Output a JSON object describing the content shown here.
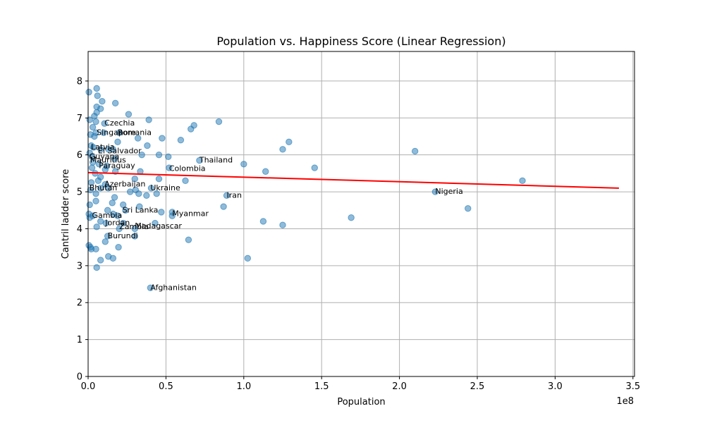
{
  "chart_data": {
    "type": "scatter",
    "title": "Population vs. Happiness Score (Linear Regression)",
    "xlabel": "Population",
    "ylabel": "Cantril ladder score",
    "x_offset_label": "1e8",
    "xlim": [
      0,
      351000000
    ],
    "ylim": [
      0,
      8.8
    ],
    "x_ticks": [
      0,
      50000000,
      100000000,
      150000000,
      200000000,
      250000000,
      300000000,
      350000000
    ],
    "x_tick_labels": [
      "0.0",
      "0.5",
      "1.0",
      "1.5",
      "2.0",
      "2.5",
      "3.0",
      "3.5"
    ],
    "y_ticks": [
      0,
      1,
      2,
      3,
      4,
      5,
      6,
      7,
      8
    ],
    "y_tick_labels": [
      "0",
      "1",
      "2",
      "3",
      "4",
      "5",
      "6",
      "7",
      "8"
    ],
    "grid": true,
    "colors": {
      "points": "#1f77b4",
      "regression": "#ff0000",
      "grid": "#b0b0b0"
    },
    "regression_line": {
      "x": [
        0,
        341000000
      ],
      "y": [
        5.52,
        5.1
      ]
    },
    "points": [
      [
        500000,
        7.7
      ],
      [
        5500000,
        7.8
      ],
      [
        6000000,
        7.6
      ],
      [
        9000000,
        7.45
      ],
      [
        17500000,
        7.4
      ],
      [
        5500000,
        7.3
      ],
      [
        8000000,
        7.25
      ],
      [
        5500000,
        7.15
      ],
      [
        26000000,
        7.1
      ],
      [
        39000000,
        6.95
      ],
      [
        4000000,
        7.05
      ],
      [
        1000000,
        6.95
      ],
      [
        5000000,
        6.9
      ],
      [
        10500000,
        6.85
      ],
      [
        84000000,
        6.9
      ],
      [
        68000000,
        6.8
      ],
      [
        3000000,
        6.75
      ],
      [
        66000000,
        6.7
      ],
      [
        5000000,
        6.6
      ],
      [
        10000000,
        6.6
      ],
      [
        20000000,
        6.6
      ],
      [
        1500000,
        6.55
      ],
      [
        4000000,
        6.5
      ],
      [
        32000000,
        6.45
      ],
      [
        47500000,
        6.45
      ],
      [
        59500000,
        6.4
      ],
      [
        129000000,
        6.35
      ],
      [
        19000000,
        6.35
      ],
      [
        38000000,
        6.25
      ],
      [
        2000000,
        6.25
      ],
      [
        3500000,
        6.2
      ],
      [
        8000000,
        6.15
      ],
      [
        13000000,
        6.15
      ],
      [
        16000000,
        6.15
      ],
      [
        125000000,
        6.15
      ],
      [
        210000000,
        6.1
      ],
      [
        1000000,
        6.05
      ],
      [
        34500000,
        6.0
      ],
      [
        45500000,
        6.0
      ],
      [
        51500000,
        5.95
      ],
      [
        2500000,
        5.95
      ],
      [
        17000000,
        5.9
      ],
      [
        3000000,
        5.8
      ],
      [
        71500000,
        5.85
      ],
      [
        100000000,
        5.75
      ],
      [
        7000000,
        5.75
      ],
      [
        12000000,
        5.7
      ],
      [
        2500000,
        5.65
      ],
      [
        145500000,
        5.65
      ],
      [
        52000000,
        5.65
      ],
      [
        11000000,
        5.6
      ],
      [
        17500000,
        5.55
      ],
      [
        33500000,
        5.55
      ],
      [
        114000000,
        5.55
      ],
      [
        4500000,
        5.5
      ],
      [
        8000000,
        5.4
      ],
      [
        30000000,
        5.35
      ],
      [
        45500000,
        5.35
      ],
      [
        6500000,
        5.3
      ],
      [
        62500000,
        5.3
      ],
      [
        279000000,
        5.3
      ],
      [
        2000000,
        5.25
      ],
      [
        11000000,
        5.2
      ],
      [
        13000000,
        5.1
      ],
      [
        27000000,
        5.0
      ],
      [
        30500000,
        5.05
      ],
      [
        8000000,
        5.1
      ],
      [
        40500000,
        5.1
      ],
      [
        223000000,
        5.0
      ],
      [
        32500000,
        4.95
      ],
      [
        1500000,
        5.05
      ],
      [
        37500000,
        4.9
      ],
      [
        44000000,
        4.95
      ],
      [
        89000000,
        4.9
      ],
      [
        5000000,
        4.95
      ],
      [
        17000000,
        4.85
      ],
      [
        5000000,
        4.75
      ],
      [
        15500000,
        4.7
      ],
      [
        1000000,
        4.65
      ],
      [
        22500000,
        4.65
      ],
      [
        87000000,
        4.6
      ],
      [
        244000000,
        4.55
      ],
      [
        12500000,
        4.5
      ],
      [
        24000000,
        4.5
      ],
      [
        33000000,
        4.6
      ],
      [
        47000000,
        4.45
      ],
      [
        54000000,
        4.45
      ],
      [
        500000,
        4.4
      ],
      [
        3000000,
        4.35
      ],
      [
        16000000,
        4.4
      ],
      [
        19000000,
        4.35
      ],
      [
        54000000,
        4.35
      ],
      [
        169000000,
        4.3
      ],
      [
        1000000,
        4.3
      ],
      [
        8000000,
        4.2
      ],
      [
        11500000,
        4.15
      ],
      [
        22500000,
        4.15
      ],
      [
        112500000,
        4.2
      ],
      [
        43000000,
        4.15
      ],
      [
        125000000,
        4.1
      ],
      [
        5500000,
        4.05
      ],
      [
        20000000,
        4.0
      ],
      [
        30000000,
        4.0
      ],
      [
        12500000,
        3.8
      ],
      [
        30000000,
        3.8
      ],
      [
        11000000,
        3.65
      ],
      [
        64500000,
        3.7
      ],
      [
        500000,
        3.55
      ],
      [
        2000000,
        3.45
      ],
      [
        5000000,
        3.45
      ],
      [
        19500000,
        3.5
      ],
      [
        1500000,
        3.5
      ],
      [
        13000000,
        3.25
      ],
      [
        16000000,
        3.2
      ],
      [
        102500000,
        3.2
      ],
      [
        8000000,
        3.15
      ],
      [
        5500000,
        2.95
      ],
      [
        40000000,
        2.4
      ]
    ],
    "annotations": [
      {
        "text": "Czechia",
        "x": 10500000,
        "y": 6.85
      },
      {
        "text": "Singapore",
        "x": 5500000,
        "y": 6.6
      },
      {
        "text": "Romania",
        "x": 19000000,
        "y": 6.6
      },
      {
        "text": "Latvia",
        "x": 1800000,
        "y": 6.2
      },
      {
        "text": "El Salvador",
        "x": 6300000,
        "y": 6.1
      },
      {
        "text": "Guyana",
        "x": 800000,
        "y": 5.95
      },
      {
        "text": "Mauritius",
        "x": 1300000,
        "y": 5.85
      },
      {
        "text": "Paraguay",
        "x": 6900000,
        "y": 5.7
      },
      {
        "text": "Thailand",
        "x": 71500000,
        "y": 5.85
      },
      {
        "text": "Colombia",
        "x": 52000000,
        "y": 5.62
      },
      {
        "text": "Azerbaijan",
        "x": 10500000,
        "y": 5.2
      },
      {
        "text": "Bhutan",
        "x": 800000,
        "y": 5.1
      },
      {
        "text": "Ukraine",
        "x": 40000000,
        "y": 5.1
      },
      {
        "text": "Iran",
        "x": 89000000,
        "y": 4.9
      },
      {
        "text": "Nigeria",
        "x": 223000000,
        "y": 5.0
      },
      {
        "text": "Sri Lanka",
        "x": 22000000,
        "y": 4.5
      },
      {
        "text": "Myanmar",
        "x": 54000000,
        "y": 4.4
      },
      {
        "text": "Gambia",
        "x": 2500000,
        "y": 4.35
      },
      {
        "text": "Jordan",
        "x": 11000000,
        "y": 4.15
      },
      {
        "text": "Zambia",
        "x": 20000000,
        "y": 4.05
      },
      {
        "text": "Madagascar",
        "x": 30000000,
        "y": 4.07
      },
      {
        "text": "Burundi",
        "x": 12500000,
        "y": 3.8
      },
      {
        "text": "Afghanistan",
        "x": 40000000,
        "y": 2.4
      }
    ]
  }
}
